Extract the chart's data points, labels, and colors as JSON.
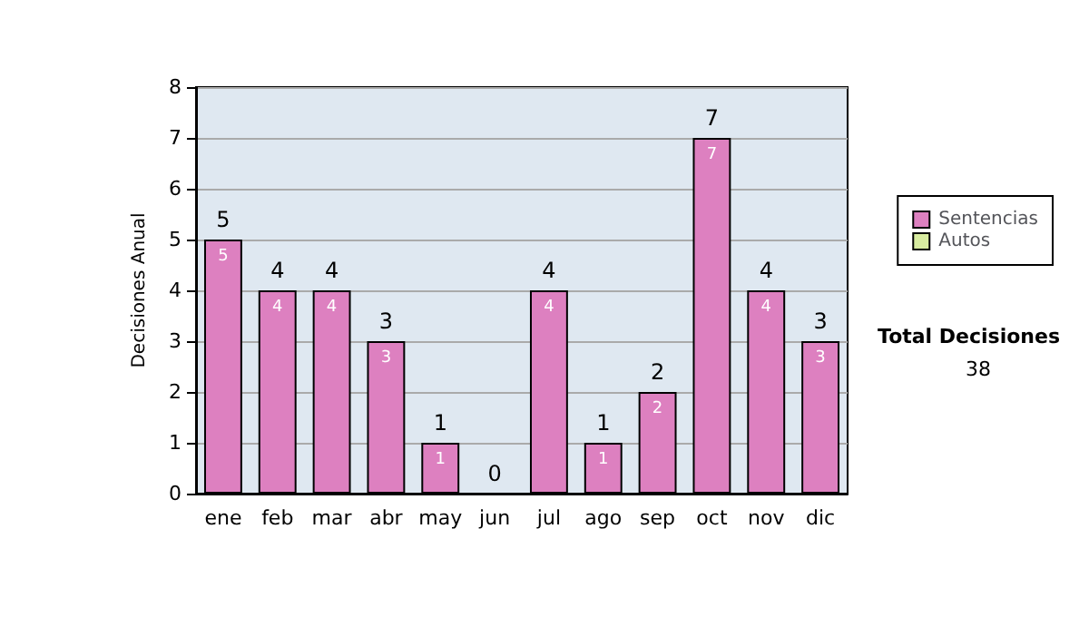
{
  "chart_data": {
    "type": "bar",
    "ylabel": "Decisiones Anual",
    "categories": [
      "ene",
      "feb",
      "mar",
      "abr",
      "may",
      "jun",
      "jul",
      "ago",
      "sep",
      "oct",
      "nov",
      "dic"
    ],
    "series": [
      {
        "name": "Sentencias",
        "color": "#dd80c0",
        "values": [
          5,
          4,
          4,
          3,
          1,
          0,
          4,
          1,
          2,
          7,
          4,
          3
        ],
        "value_labels": [
          "5",
          "4",
          "4",
          "3",
          "1",
          null,
          "4",
          "1",
          "2",
          "7",
          "4",
          "3"
        ]
      },
      {
        "name": "Autos",
        "color": "#d8eca0",
        "values": [
          0,
          0,
          0,
          0,
          0,
          0,
          0,
          0,
          0,
          0,
          0,
          0
        ]
      }
    ],
    "stacked": true,
    "totals": [
      "5",
      "4",
      "4",
      "3",
      "1",
      "0",
      "4",
      "1",
      "2",
      "7",
      "4",
      "3"
    ],
    "ylim": [
      0,
      8
    ],
    "yticks": [
      0,
      1,
      2,
      3,
      4,
      5,
      6,
      7,
      8
    ],
    "grid": "y",
    "legend": "right",
    "annotations": [
      "Total Decisiones",
      "38"
    ]
  }
}
